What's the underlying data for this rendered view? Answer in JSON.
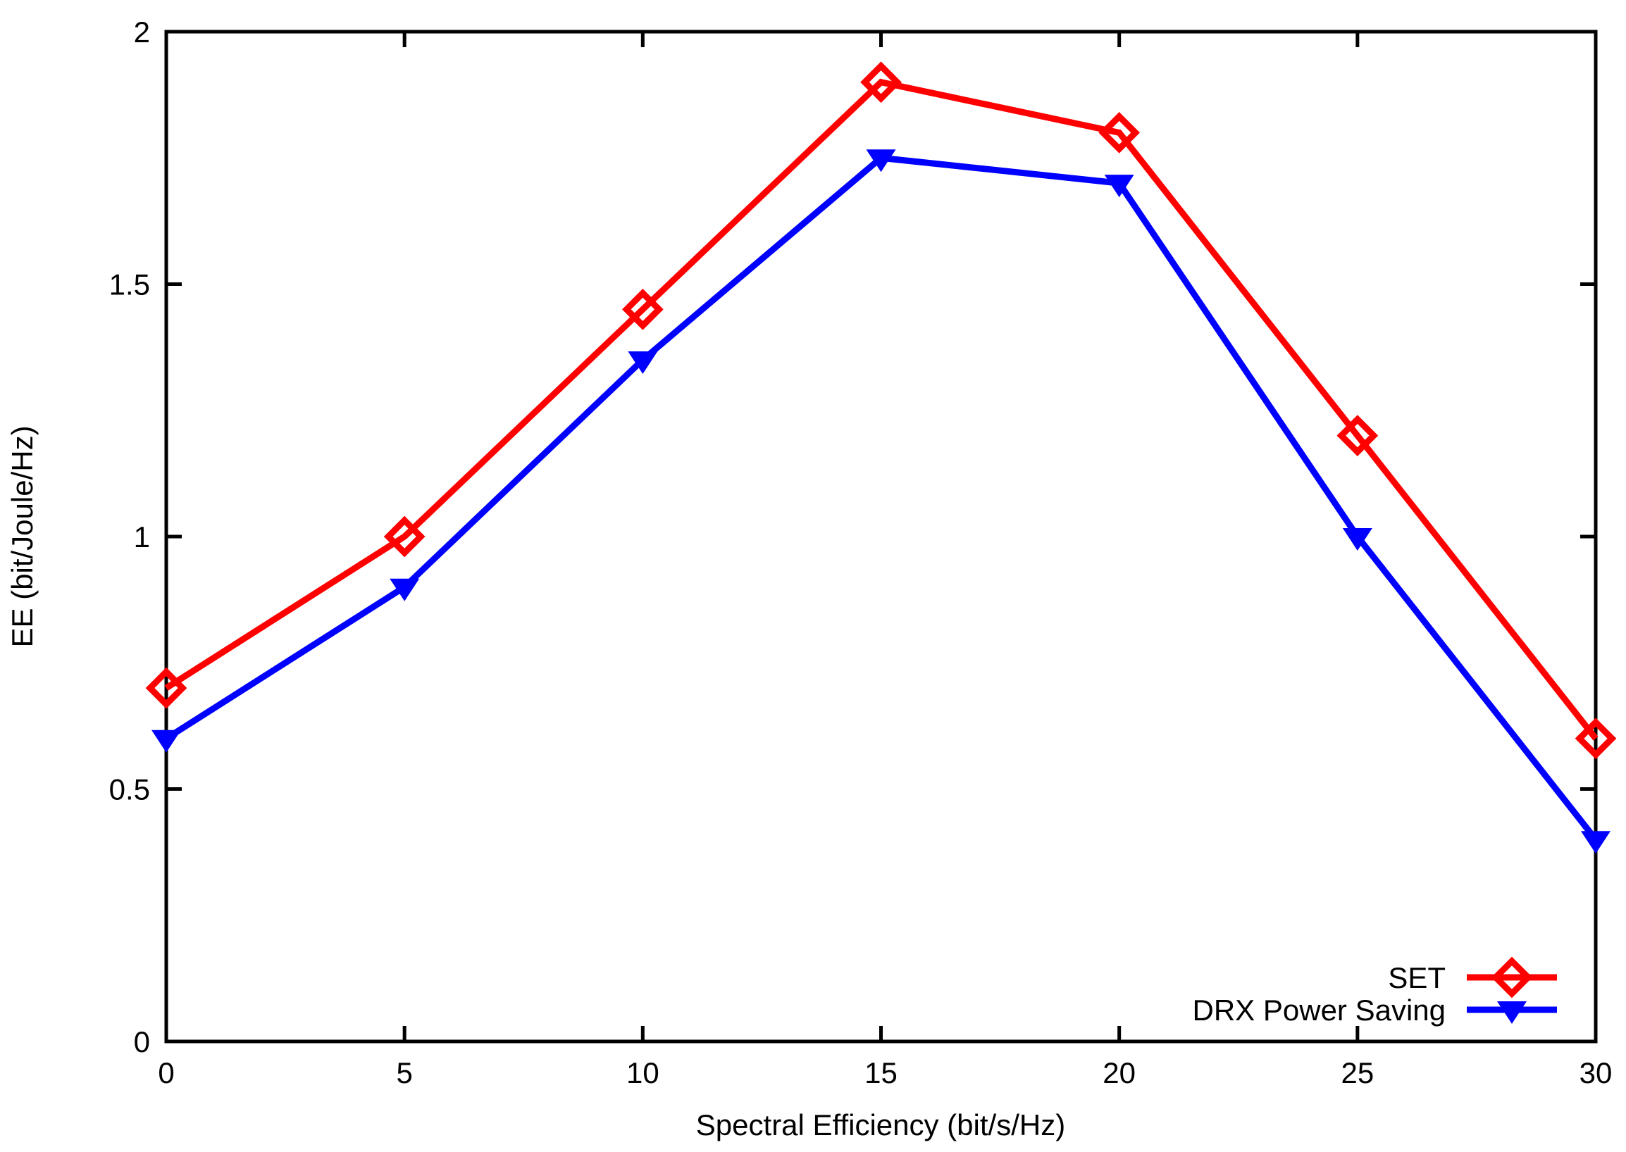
{
  "chart_data": {
    "type": "line",
    "title": "",
    "xlabel": "Spectral Efficiency (bit/s/Hz)",
    "ylabel": "EE (bit/Joule/Hz)",
    "xlim": [
      0,
      30
    ],
    "ylim": [
      0,
      2
    ],
    "xticks": [
      0,
      5,
      10,
      15,
      20,
      25,
      30
    ],
    "xtick_labels": [
      "0",
      "5",
      "10",
      "15",
      "20",
      "25",
      "30"
    ],
    "yticks": [
      0,
      0.5,
      1,
      1.5,
      2
    ],
    "ytick_labels": [
      "0",
      "0.5",
      "1",
      "1.5",
      "2"
    ],
    "grid": false,
    "legend_position": "bottom-right-inside",
    "x": [
      0,
      5,
      10,
      15,
      20,
      25,
      30
    ],
    "series": [
      {
        "name": "SET",
        "values": [
          0.7,
          1.0,
          1.45,
          1.9,
          1.8,
          1.2,
          0.6
        ],
        "color": "#ff0000",
        "marker": "open-diamond"
      },
      {
        "name": "DRX Power Saving",
        "values": [
          0.6,
          0.9,
          1.35,
          1.75,
          1.7,
          1.0,
          0.4
        ],
        "color": "#0000ff",
        "marker": "filled-triangle-down"
      }
    ]
  },
  "colors": {
    "axis": "#000000",
    "background": "#ffffff"
  }
}
